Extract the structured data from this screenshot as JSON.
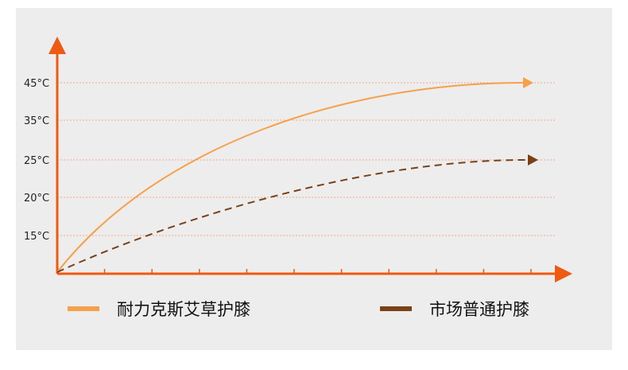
{
  "chart_data": {
    "type": "line",
    "title": "",
    "xlabel": "",
    "ylabel": "",
    "y_ticks": [
      "15°C",
      "20°C",
      "25°C",
      "35°C",
      "45°C"
    ],
    "grid": true,
    "legend_position": "bottom",
    "series": [
      {
        "name": "耐力克斯艾草护膝",
        "style": "solid",
        "color": "#f7a04b",
        "start": "",
        "end": "45°C"
      },
      {
        "name": "市场普通护膝",
        "style": "dashed",
        "color": "#7a4117",
        "start": "",
        "end": "25°C"
      }
    ]
  },
  "colors": {
    "axis": "#ee5a12",
    "grid": "#f0a98a",
    "background": "#ededee"
  }
}
